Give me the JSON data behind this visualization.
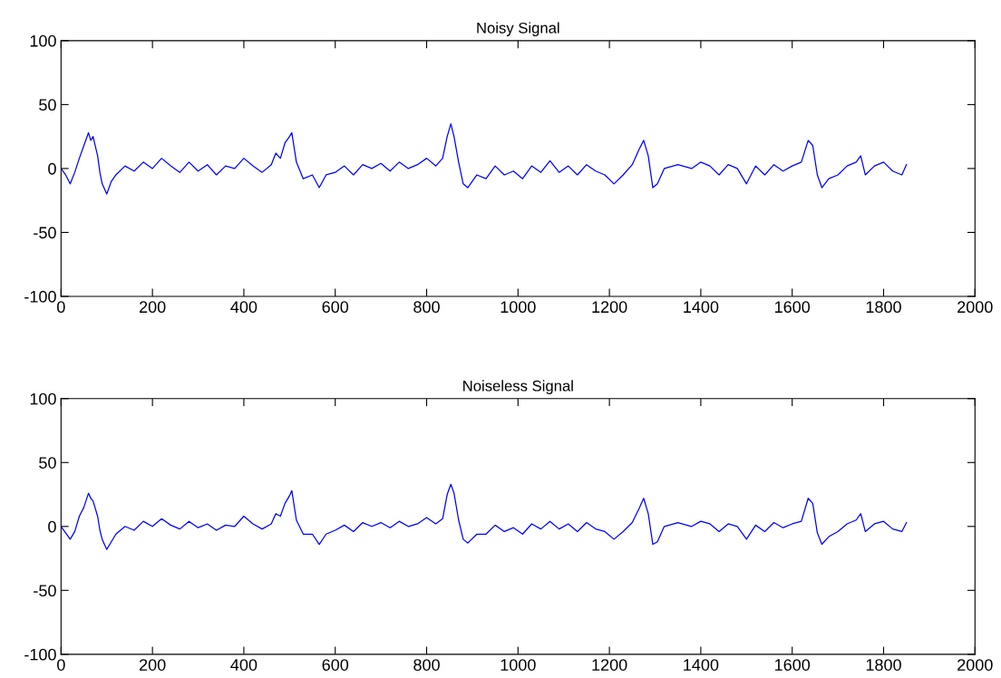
{
  "chart_data": [
    {
      "type": "line",
      "title": "Noisy Signal",
      "xlim": [
        0,
        2000
      ],
      "ylim": [
        -100,
        100
      ],
      "xticks": [
        0,
        200,
        400,
        600,
        800,
        1000,
        1200,
        1400,
        1600,
        1800,
        2000
      ],
      "yticks": [
        -100,
        -50,
        0,
        50,
        100
      ],
      "x": [
        0,
        10,
        20,
        30,
        40,
        50,
        60,
        65,
        70,
        80,
        85,
        90,
        100,
        110,
        120,
        140,
        160,
        180,
        200,
        220,
        240,
        260,
        280,
        300,
        320,
        340,
        360,
        380,
        400,
        420,
        440,
        460,
        470,
        480,
        490,
        500,
        505,
        515,
        530,
        550,
        565,
        580,
        600,
        620,
        640,
        660,
        680,
        700,
        720,
        740,
        760,
        780,
        800,
        820,
        835,
        845,
        853,
        860,
        870,
        880,
        890,
        910,
        930,
        950,
        970,
        990,
        1010,
        1030,
        1050,
        1070,
        1090,
        1110,
        1130,
        1150,
        1170,
        1190,
        1210,
        1230,
        1250,
        1265,
        1275,
        1285,
        1295,
        1305,
        1320,
        1350,
        1380,
        1400,
        1420,
        1440,
        1460,
        1480,
        1500,
        1520,
        1540,
        1560,
        1580,
        1600,
        1620,
        1635,
        1645,
        1655,
        1665,
        1680,
        1700,
        1720,
        1740,
        1750,
        1760,
        1780,
        1800,
        1820,
        1840,
        1850
      ],
      "series": [
        {
          "color": "#0000ff",
          "values": [
            0,
            -5,
            -12,
            -3,
            8,
            18,
            28,
            22,
            25,
            10,
            -3,
            -12,
            -20,
            -10,
            -5,
            2,
            -2,
            5,
            0,
            8,
            2,
            -3,
            5,
            -2,
            3,
            -5,
            2,
            0,
            8,
            2,
            -3,
            3,
            12,
            8,
            20,
            25,
            28,
            5,
            -8,
            -5,
            -15,
            -5,
            -3,
            2,
            -5,
            3,
            0,
            4,
            -2,
            5,
            0,
            3,
            8,
            2,
            8,
            25,
            35,
            25,
            5,
            -12,
            -15,
            -5,
            -8,
            2,
            -5,
            -2,
            -8,
            2,
            -3,
            6,
            -3,
            2,
            -5,
            3,
            -2,
            -5,
            -12,
            -5,
            3,
            15,
            22,
            10,
            -15,
            -12,
            0,
            3,
            0,
            5,
            2,
            -5,
            3,
            0,
            -12,
            2,
            -5,
            3,
            -2,
            2,
            5,
            22,
            18,
            -5,
            -15,
            -8,
            -5,
            2,
            5,
            10,
            -5,
            2,
            5,
            -2,
            -5,
            3
          ]
        }
      ]
    },
    {
      "type": "line",
      "title": "Noiseless Signal",
      "xlim": [
        0,
        2000
      ],
      "ylim": [
        -100,
        100
      ],
      "xticks": [
        0,
        200,
        400,
        600,
        800,
        1000,
        1200,
        1400,
        1600,
        1800,
        2000
      ],
      "yticks": [
        -100,
        -50,
        0,
        50,
        100
      ],
      "x": [
        0,
        10,
        20,
        30,
        40,
        50,
        60,
        65,
        70,
        80,
        85,
        90,
        100,
        110,
        120,
        140,
        160,
        180,
        200,
        220,
        240,
        260,
        280,
        300,
        320,
        340,
        360,
        380,
        400,
        420,
        440,
        460,
        470,
        480,
        490,
        500,
        505,
        515,
        530,
        550,
        565,
        580,
        600,
        620,
        640,
        660,
        680,
        700,
        720,
        740,
        760,
        780,
        800,
        820,
        835,
        845,
        853,
        860,
        870,
        880,
        890,
        910,
        930,
        950,
        970,
        990,
        1010,
        1030,
        1050,
        1070,
        1090,
        1110,
        1130,
        1150,
        1170,
        1190,
        1210,
        1230,
        1250,
        1265,
        1275,
        1285,
        1295,
        1305,
        1320,
        1350,
        1380,
        1400,
        1420,
        1440,
        1460,
        1480,
        1500,
        1520,
        1540,
        1560,
        1580,
        1600,
        1620,
        1635,
        1645,
        1655,
        1665,
        1680,
        1700,
        1720,
        1740,
        1750,
        1760,
        1780,
        1800,
        1820,
        1840,
        1850
      ],
      "series": [
        {
          "color": "#0000ff",
          "values": [
            0,
            -5,
            -10,
            -4,
            8,
            15,
            26,
            22,
            20,
            8,
            -3,
            -10,
            -18,
            -12,
            -6,
            0,
            -3,
            4,
            0,
            6,
            1,
            -2,
            4,
            -1,
            2,
            -3,
            1,
            0,
            8,
            2,
            -2,
            2,
            10,
            8,
            18,
            24,
            28,
            5,
            -6,
            -6,
            -14,
            -6,
            -3,
            1,
            -4,
            3,
            0,
            3,
            -1,
            4,
            0,
            2,
            7,
            2,
            6,
            25,
            33,
            26,
            5,
            -10,
            -13,
            -6,
            -6,
            1,
            -4,
            -1,
            -6,
            2,
            -2,
            4,
            -2,
            2,
            -4,
            3,
            -2,
            -4,
            -10,
            -4,
            3,
            14,
            22,
            10,
            -14,
            -12,
            0,
            3,
            0,
            4,
            2,
            -4,
            2,
            0,
            -10,
            1,
            -4,
            3,
            -1,
            2,
            4,
            22,
            18,
            -5,
            -14,
            -8,
            -4,
            2,
            5,
            10,
            -4,
            2,
            4,
            -2,
            -4,
            3
          ]
        }
      ]
    }
  ]
}
